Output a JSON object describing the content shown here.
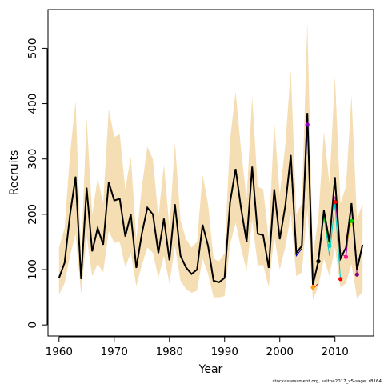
{
  "chart_data": {
    "type": "line",
    "title": "",
    "xlabel": "Year",
    "ylabel": "Recruits",
    "footnote": "stockassessment.org, saithe2017_v5-sage, r8164",
    "xlim": [
      1958,
      2017
    ],
    "ylim": [
      -20,
      570
    ],
    "x_ticks": [
      1960,
      1970,
      1980,
      1990,
      2000,
      2010
    ],
    "y_ticks": [
      0,
      100,
      200,
      300,
      400,
      500
    ],
    "grid": false,
    "legend": "none",
    "colors": {
      "band": "#f5deb3",
      "main_line": "#000000",
      "retro_lines": [
        "#ff0000",
        "#00cdcd",
        "#00cd00",
        "#0000cd",
        "#cd00cd",
        "#cdcd00",
        "#8b008b"
      ]
    },
    "series": [
      {
        "x": [
          1960,
          1961,
          1962,
          1963,
          1964,
          1965,
          1966,
          1967,
          1968,
          1969,
          1970,
          1971,
          1972,
          1973,
          1974,
          1975,
          1976,
          1977,
          1978,
          1979,
          1980,
          1981,
          1982,
          1983,
          1984,
          1985,
          1986,
          1987,
          1988,
          1989,
          1990,
          1991,
          1992,
          1993,
          1994,
          1995,
          1996,
          1997,
          1998,
          1999,
          2000,
          2001,
          2002,
          2003,
          2004,
          2005,
          2006,
          2007,
          2008,
          2009,
          2010,
          2011,
          2012,
          2013,
          2014,
          2015
        ],
        "values": [
          85,
          112,
          200,
          268,
          83,
          248,
          133,
          175,
          145,
          258,
          225,
          228,
          160,
          200,
          103,
          165,
          212,
          200,
          130,
          192,
          117,
          218,
          125,
          104,
          92,
          100,
          181,
          143,
          80,
          77,
          85,
          222,
          282,
          210,
          150,
          286,
          165,
          162,
          103,
          245,
          155,
          215,
          307,
          130,
          143,
          383,
          73,
          115,
          207,
          150,
          267,
          120,
          140,
          220,
          100,
          145
        ],
        "lower": [
          55,
          75,
          125,
          165,
          55,
          160,
          88,
          110,
          95,
          170,
          148,
          150,
          105,
          130,
          70,
          108,
          140,
          130,
          85,
          125,
          75,
          142,
          80,
          65,
          58,
          62,
          120,
          92,
          50,
          50,
          52,
          145,
          185,
          138,
          98,
          190,
          108,
          108,
          68,
          160,
          100,
          140,
          200,
          88,
          95,
          210,
          45,
          70,
          120,
          88,
          140,
          68,
          75,
          110,
          48,
          60
        ],
        "upper": [
          140,
          175,
          310,
          405,
          125,
          375,
          200,
          265,
          220,
          390,
          340,
          345,
          245,
          305,
          155,
          250,
          322,
          300,
          195,
          290,
          175,
          330,
          190,
          155,
          140,
          150,
          272,
          218,
          120,
          115,
          130,
          335,
          422,
          315,
          228,
          413,
          250,
          245,
          155,
          368,
          235,
          325,
          462,
          200,
          220,
          548,
          125,
          195,
          350,
          255,
          450,
          220,
          250,
          415,
          190,
          220
        ]
      },
      {
        "name": "",
        "x": [
          2005,
          2006,
          2007
        ],
        "values": [
          383,
          65,
          75
        ]
      },
      {
        "name": "",
        "x": [
          2008,
          2009,
          2010,
          2011
        ],
        "values": [
          198,
          125,
          220,
          83
        ]
      },
      {
        "name": "",
        "x": [
          2008,
          2009
        ],
        "values": [
          195,
          143
        ]
      },
      {
        "name": "",
        "x": [
          2002,
          2003,
          2004,
          2005
        ],
        "values": [
          295,
          125,
          138,
          355
        ]
      },
      {
        "name": "",
        "x": [
          2010,
          2011,
          2012,
          2013
        ],
        "values": [
          232,
          130,
          123,
          218
        ]
      },
      {
        "name": "",
        "x": [
          2011,
          2012,
          2013
        ],
        "values": [
          118,
          140,
          188
        ]
      },
      {
        "name": "",
        "x": [
          2012,
          2013,
          2014
        ],
        "values": [
          150,
          215,
          91
        ]
      }
    ],
    "points": [
      {
        "x": 2005,
        "y": 362,
        "color": "#8b00cd"
      },
      {
        "x": 2006,
        "y": 68,
        "color": "#ffa500"
      },
      {
        "x": 2007,
        "y": 115,
        "color": "#000000"
      },
      {
        "x": 2009,
        "y": 143,
        "color": "#00cdcd"
      },
      {
        "x": 2010,
        "y": 222,
        "color": "#ff0000"
      },
      {
        "x": 2011,
        "y": 83,
        "color": "#ff0000"
      },
      {
        "x": 2012,
        "y": 123,
        "color": "#ff1493"
      },
      {
        "x": 2013,
        "y": 188,
        "color": "#00cd00"
      },
      {
        "x": 2014,
        "y": 91,
        "color": "#8b008b"
      }
    ]
  }
}
